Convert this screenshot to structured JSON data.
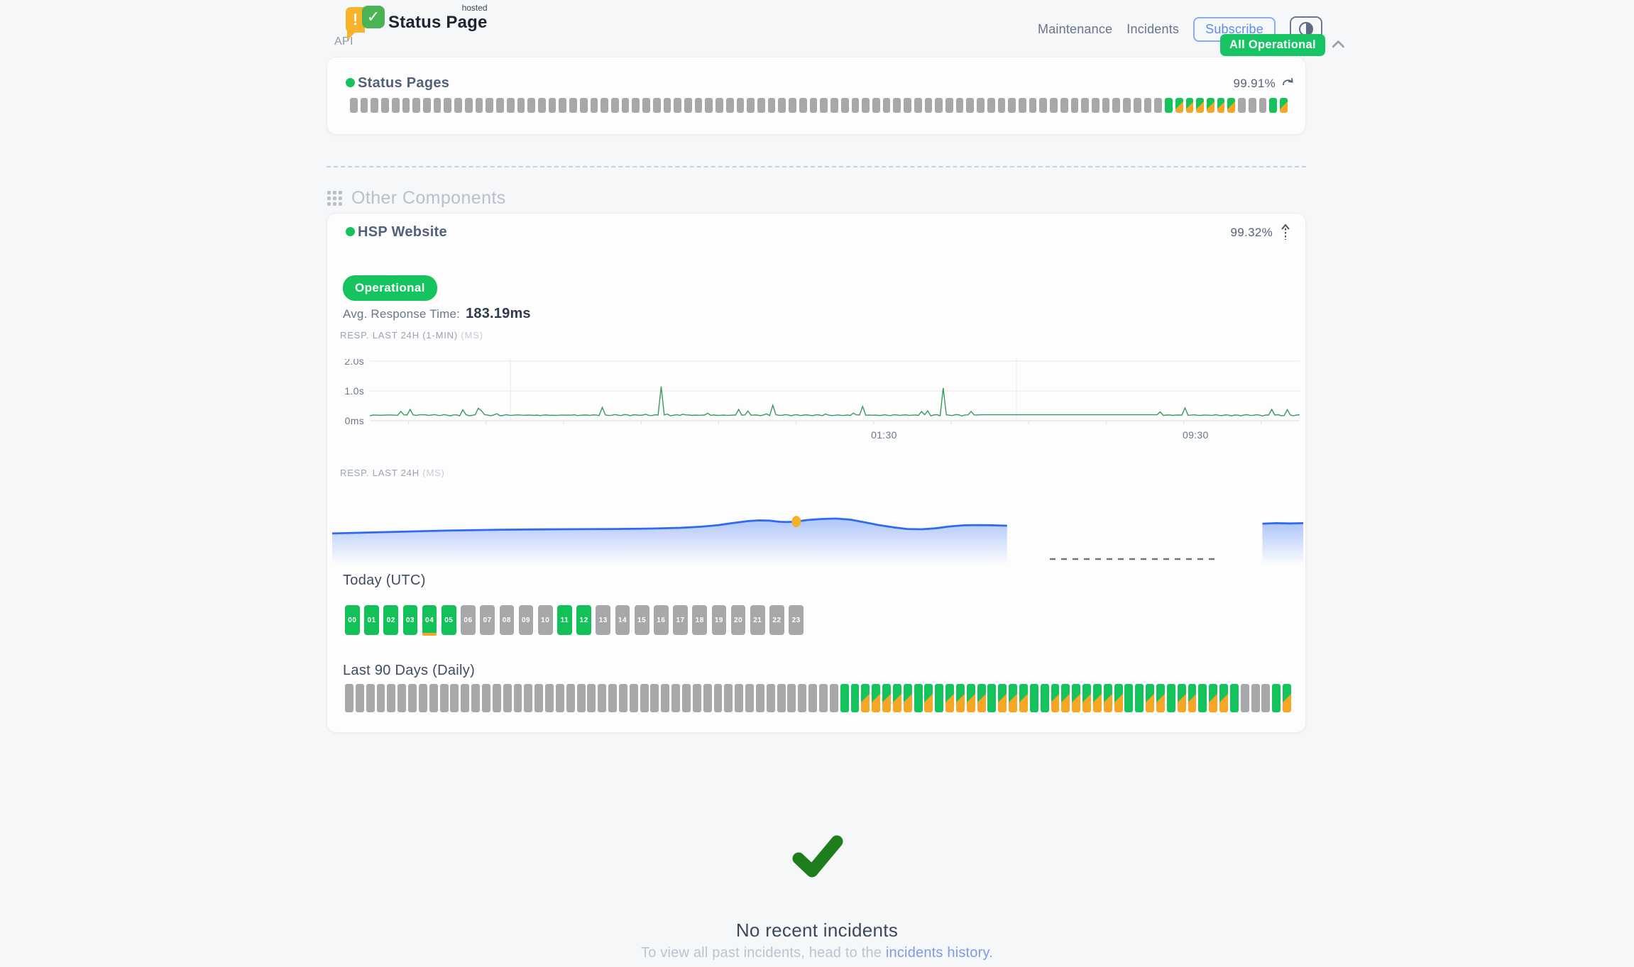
{
  "colors": {
    "page_bg": "#f6f7f9",
    "green": "#14c35c",
    "orange": "#f6a525",
    "gray_bar": "#a8a8ab",
    "badge_green": "#17c464",
    "blue_line": "#2f6bf0",
    "green_line": "#38995f",
    "check_green": "#1e7e1e",
    "link_blue": "#7d9bea"
  },
  "header": {
    "logo_exclamation": "!",
    "logo_check": "✓",
    "brand": "Status Page",
    "brand_superscript": "hosted",
    "nav": [
      {
        "label": "Maintenance"
      },
      {
        "label": "Incidents"
      }
    ],
    "subscribe_label": "Subscribe",
    "overall_status": "All Operational"
  },
  "api_section": {
    "title": "API",
    "component_name": "Status Pages",
    "uptime_percent": "99.91%",
    "uptime_bars": "ggggggggggggggggggggggggggggggggggggggggggggggggggggggggggggggggggggggggggggggGMMMMMMgggGM"
  },
  "other_section": {
    "title": "Other Components",
    "component_name": "HSP Website",
    "uptime_percent": "99.32%",
    "status_pill": "Operational",
    "avg_response_label": "Avg. Response Time:",
    "avg_response_value": "183.19ms",
    "chart1_label": "RESP. LAST 24H (1-MIN)",
    "chart1_unit": "(MS)",
    "chart2_label": "RESP. LAST 24H",
    "chart2_unit": "(MS)",
    "today_title": "Today (UTC)",
    "today_hours": [
      {
        "label": "00",
        "status": "up"
      },
      {
        "label": "01",
        "status": "up"
      },
      {
        "label": "02",
        "status": "up"
      },
      {
        "label": "03",
        "status": "up"
      },
      {
        "label": "04",
        "status": "up",
        "marker": true
      },
      {
        "label": "05",
        "status": "up"
      },
      {
        "label": "06",
        "status": "nodata"
      },
      {
        "label": "07",
        "status": "nodata"
      },
      {
        "label": "08",
        "status": "nodata"
      },
      {
        "label": "09",
        "status": "nodata"
      },
      {
        "label": "10",
        "status": "nodata"
      },
      {
        "label": "11",
        "status": "up"
      },
      {
        "label": "12",
        "status": "up"
      },
      {
        "label": "13",
        "status": "nodata"
      },
      {
        "label": "14",
        "status": "nodata"
      },
      {
        "label": "15",
        "status": "nodata"
      },
      {
        "label": "16",
        "status": "nodata"
      },
      {
        "label": "17",
        "status": "nodata"
      },
      {
        "label": "18",
        "status": "nodata"
      },
      {
        "label": "19",
        "status": "nodata"
      },
      {
        "label": "20",
        "status": "nodata"
      },
      {
        "label": "21",
        "status": "nodata"
      },
      {
        "label": "22",
        "status": "nodata"
      },
      {
        "label": "23",
        "status": "nodata"
      }
    ],
    "last90_title": "Last 90 Days (Daily)",
    "last90_bars": "gggggggggggggggggggggggggggggggggggggggggggggggGGMMMMMGMGMMMMGMMMGGMMMMMMMGGMMGMMGMMGgggGM"
  },
  "incidents_section": {
    "title": "No recent incidents",
    "subtitle_prefix": "To view all past incidents, head to the ",
    "history_link": "incidents history."
  },
  "chart_data": [
    {
      "type": "line",
      "title": "RESP. LAST 24H (1-MIN)",
      "unit": "MS",
      "y_ticks": [
        "2.0s",
        "1.0s",
        "0ms"
      ],
      "y_axis_ms": [
        0,
        2095
      ],
      "x_tick_labels": [
        "01:30",
        "09:30"
      ],
      "x_tick_label_pos": [
        0.553,
        0.888
      ],
      "baseline_noise_ms": [
        150,
        240
      ],
      "spikes": [
        {
          "x": 0.115,
          "ms": 420
        },
        {
          "x": 0.25,
          "ms": 450
        },
        {
          "x": 0.3145,
          "ms": 1150
        },
        {
          "x": 0.434,
          "ms": 520
        },
        {
          "x": 0.53,
          "ms": 480
        },
        {
          "x": 0.618,
          "ms": 1100
        },
        {
          "x": 0.875,
          "ms": 430
        },
        {
          "x": 0.97,
          "ms": 380
        }
      ],
      "flat_segment": {
        "from": 0.655,
        "to": 0.847,
        "ms": 200
      },
      "line_color": "#38995f",
      "grid": true
    },
    {
      "type": "area",
      "title": "RESP. LAST 24H",
      "unit": "MS",
      "avg_ms": 183.19,
      "line_color": "#2f6bf0",
      "marker": {
        "x": 0.478,
        "ms": 210,
        "color": "#f5b02a"
      },
      "main_series": [
        [
          0,
          159
        ],
        [
          0.058,
          165
        ],
        [
          0.117,
          171
        ],
        [
          0.175,
          175
        ],
        [
          0.234,
          177
        ],
        [
          0.292,
          178
        ],
        [
          0.329,
          180
        ],
        [
          0.358,
          183
        ],
        [
          0.38,
          188
        ],
        [
          0.398,
          195
        ],
        [
          0.413,
          204
        ],
        [
          0.428,
          212
        ],
        [
          0.439,
          215
        ],
        [
          0.45,
          214
        ],
        [
          0.461,
          209
        ],
        [
          0.468,
          208
        ],
        [
          0.478,
          210
        ],
        [
          0.49,
          217
        ],
        [
          0.504,
          221
        ],
        [
          0.519,
          223
        ],
        [
          0.534,
          218
        ],
        [
          0.548,
          207
        ],
        [
          0.563,
          195
        ],
        [
          0.578,
          185
        ],
        [
          0.592,
          178
        ],
        [
          0.607,
          177
        ],
        [
          0.621,
          181
        ],
        [
          0.636,
          189
        ],
        [
          0.651,
          194
        ],
        [
          0.665,
          195
        ],
        [
          0.68,
          194
        ],
        [
          0.695,
          192
        ]
      ],
      "gap_dashes": {
        "from": 0.739,
        "to": 0.91
      },
      "tail_series": [
        [
          0.958,
          201
        ],
        [
          0.972,
          203
        ],
        [
          0.987,
          202
        ],
        [
          1,
          203
        ]
      ]
    }
  ]
}
